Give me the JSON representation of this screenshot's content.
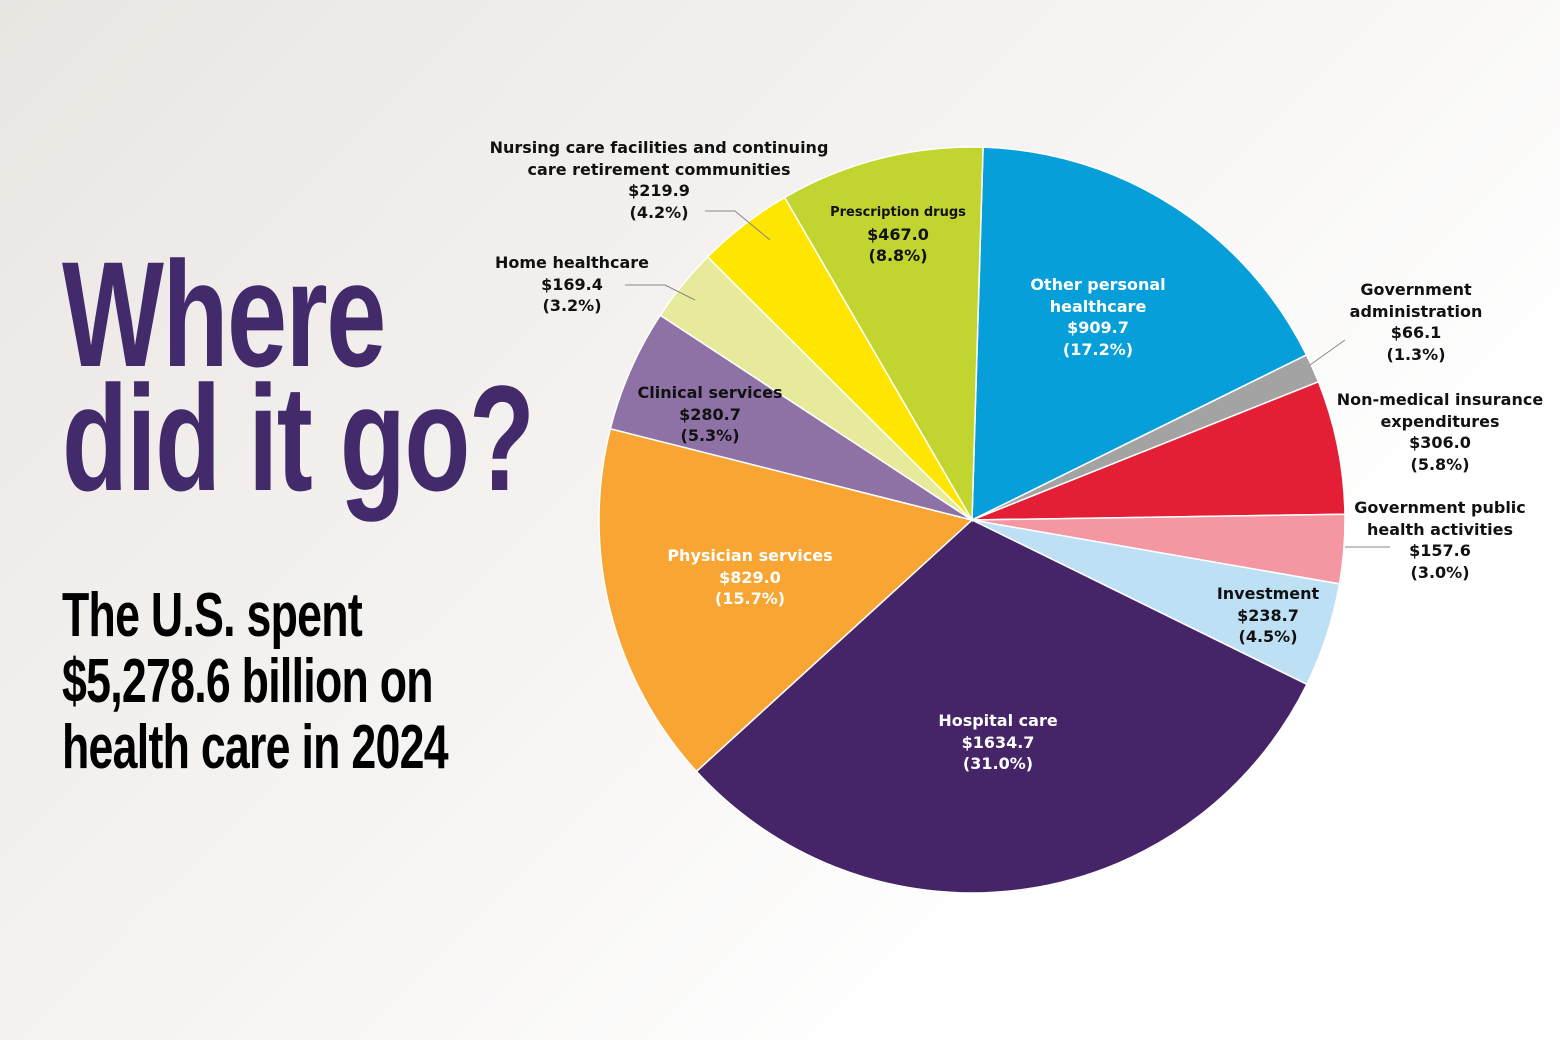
{
  "chart_data": {
    "type": "pie",
    "title": "Where did it go?",
    "subtitle": "The U.S. spent $5,278.6 billion on health care in 2024",
    "categories": [
      "Other personal healthcare",
      "Government administration",
      "Non-medical insurance expenditures",
      "Government public health activities",
      "Investment",
      "Hospital care",
      "Physician services",
      "Clinical services",
      "Home healthcare",
      "Nursing care facilities and continuing care retirement communities",
      "Prescription drugs"
    ],
    "values": [
      909.7,
      66.1,
      306.0,
      157.6,
      238.7,
      1634.7,
      829.0,
      280.7,
      169.4,
      219.9,
      467.0
    ],
    "value_labels": [
      "$909.7",
      "$66.1",
      "$306.0",
      "$157.6",
      "$238.7",
      "$1634.7",
      "$829.0",
      "$280.7",
      "$169.4",
      "$219.9",
      "$467.0"
    ],
    "shares": [
      17.2,
      1.3,
      5.8,
      3.0,
      4.5,
      31.0,
      15.7,
      5.3,
      3.2,
      4.2,
      8.8
    ],
    "share_labels": [
      "(17.2%)",
      "(1.3%)",
      "(5.8%)",
      "(3.0%)",
      "(4.5%)",
      "(31.0%)",
      "(15.7%)",
      "(5.3%)",
      "(3.2%)",
      "(4.2%)",
      "(8.8%)"
    ],
    "colors": [
      "#069fd9",
      "#a3a3a3",
      "#e41e35",
      "#f497a2",
      "#bde0f5",
      "#452468",
      "#f8a533",
      "#8e72a6",
      "#e8ea9b",
      "#ffe600",
      "#c2d430"
    ]
  }
}
